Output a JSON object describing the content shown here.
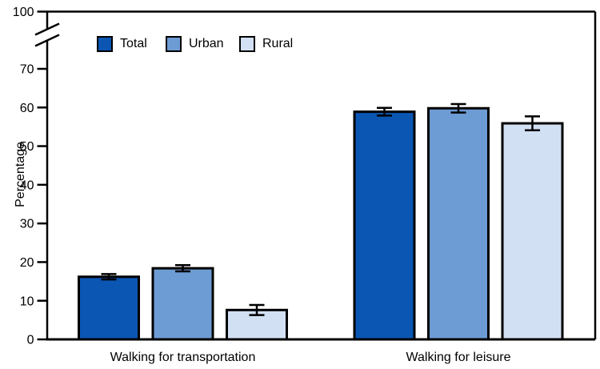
{
  "figure": {
    "background_color": "#FFFFFF",
    "axis_color": "#000000",
    "text_color": "#000000"
  },
  "chart_data": {
    "type": "bar",
    "title": "",
    "categories": [
      "Walking for transportation",
      "Walking for leisure"
    ],
    "series": [
      {
        "name": "Total",
        "color": "#0B56B3",
        "values": [
          16.2,
          58.9
        ],
        "errors": [
          0.7,
          1.0
        ]
      },
      {
        "name": "Urban",
        "color": "#6D9BD4",
        "values": [
          18.4,
          59.8
        ],
        "errors": [
          0.8,
          1.1
        ]
      },
      {
        "name": "Rural",
        "color": "#D2E0F3",
        "values": [
          7.6,
          55.9
        ],
        "errors": [
          1.3,
          1.8
        ]
      }
    ],
    "xlabel": "",
    "ylabel": "Percentage",
    "ylim": [
      0,
      100
    ],
    "yticks": [
      0,
      10,
      20,
      30,
      40,
      50,
      60,
      70,
      100
    ],
    "axis_break": {
      "between": [
        70,
        100
      ]
    },
    "error_bars": true,
    "grid": false,
    "legend_position": "top-left-inside",
    "legend_labels": [
      "Total",
      "Urban",
      "Rural"
    ]
  }
}
